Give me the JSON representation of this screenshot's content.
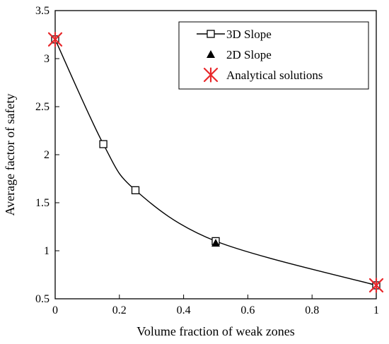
{
  "chart_data": {
    "type": "scatter",
    "title": "",
    "xlabel": "Volume fraction of weak zones",
    "ylabel": "Average factor of safety",
    "xlim": [
      0,
      1
    ],
    "ylim": [
      0.5,
      3.5
    ],
    "xticks": [
      "0",
      "0.2",
      "0.4",
      "0.6",
      "0.8",
      "1"
    ],
    "yticks": [
      "0.5",
      "1",
      "1.5",
      "2",
      "2.5",
      "3",
      "3.5"
    ],
    "grid": false,
    "legend_position": "top-right",
    "series": [
      {
        "name": "3D Slope",
        "marker": "open-square",
        "line": "smooth",
        "color": "#000000",
        "x": [
          0,
          0.15,
          0.25,
          0.5,
          1
        ],
        "y": [
          3.2,
          2.11,
          1.63,
          1.1,
          0.64
        ]
      },
      {
        "name": "2D Slope",
        "marker": "filled-triangle",
        "color": "#000000",
        "x": [
          0.5
        ],
        "y": [
          1.08
        ]
      },
      {
        "name": "Analytical solutions",
        "marker": "star",
        "color": "#e8282b",
        "x": [
          0,
          1
        ],
        "y": [
          3.2,
          0.64
        ]
      }
    ]
  }
}
